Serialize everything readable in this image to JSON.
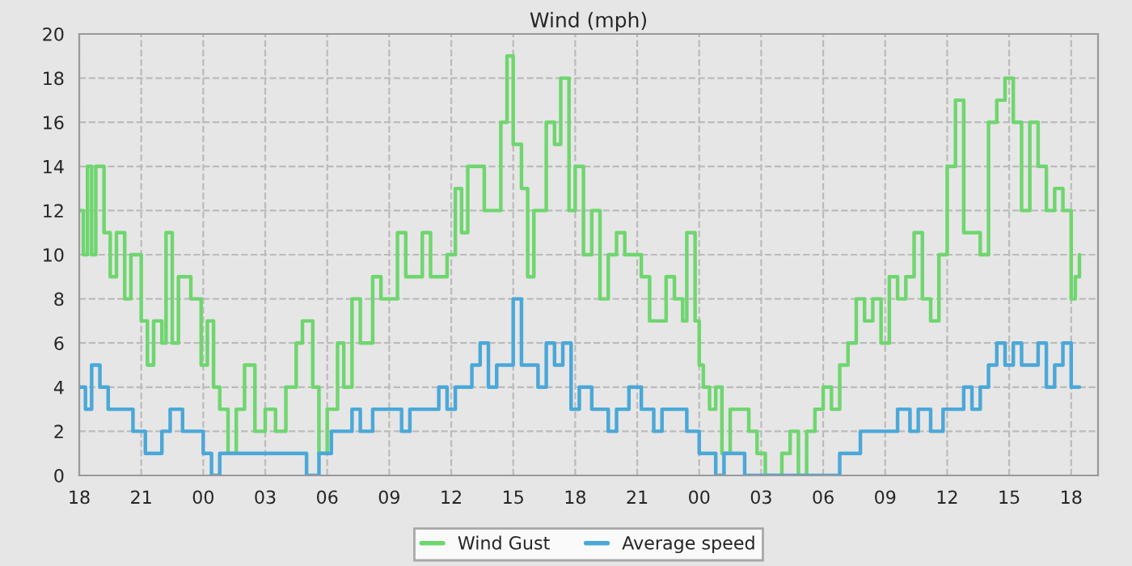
{
  "chart_data": {
    "type": "step",
    "title": "Wind (mph)",
    "xlim": [
      18,
      67.3
    ],
    "ylim": [
      0,
      20
    ],
    "xticks": [
      {
        "value": 18,
        "label": "18"
      },
      {
        "value": 21,
        "label": "21"
      },
      {
        "value": 24,
        "label": "00"
      },
      {
        "value": 27,
        "label": "03"
      },
      {
        "value": 30,
        "label": "06"
      },
      {
        "value": 33,
        "label": "09"
      },
      {
        "value": 36,
        "label": "12"
      },
      {
        "value": 39,
        "label": "15"
      },
      {
        "value": 42,
        "label": "18"
      },
      {
        "value": 45,
        "label": "21"
      },
      {
        "value": 48,
        "label": "00"
      },
      {
        "value": 51,
        "label": "03"
      },
      {
        "value": 54,
        "label": "06"
      },
      {
        "value": 57,
        "label": "09"
      },
      {
        "value": 60,
        "label": "12"
      },
      {
        "value": 63,
        "label": "15"
      },
      {
        "value": 66,
        "label": "18"
      }
    ],
    "yticks": [
      0,
      2,
      4,
      6,
      8,
      10,
      12,
      14,
      16,
      18,
      20
    ],
    "grid": true,
    "legend": "bottom",
    "series": [
      {
        "name": "Wind Gust",
        "color": "#6fd66f",
        "x": [
          18.0,
          18.2,
          18.4,
          18.6,
          18.8,
          19.2,
          19.5,
          19.8,
          20.2,
          20.5,
          21.0,
          21.3,
          21.6,
          22.0,
          22.2,
          22.5,
          22.8,
          23.4,
          23.9,
          24.2,
          24.5,
          24.8,
          25.2,
          25.6,
          26.0,
          26.5,
          27.0,
          27.5,
          28.0,
          28.5,
          28.8,
          29.3,
          29.6,
          30.0,
          30.5,
          30.8,
          31.2,
          31.6,
          32.2,
          32.6,
          33.0,
          33.4,
          33.8,
          34.2,
          34.6,
          35.0,
          35.3,
          35.8,
          36.2,
          36.5,
          36.8,
          37.3,
          37.6,
          38.0,
          38.4,
          38.7,
          39.0,
          39.4,
          39.7,
          40.0,
          40.3,
          40.6,
          41.0,
          41.3,
          41.7,
          42.0,
          42.4,
          42.8,
          43.2,
          43.6,
          44.0,
          44.4,
          44.8,
          45.2,
          45.6,
          46.0,
          46.4,
          46.8,
          47.2,
          47.4,
          47.8,
          48.0,
          48.2,
          48.5,
          48.8,
          49.1,
          49.5,
          49.8,
          50.4,
          50.8,
          51.2,
          51.6,
          52.0,
          52.4,
          52.8,
          53.2,
          53.6,
          54.0,
          54.4,
          54.8,
          55.2,
          55.6,
          56.0,
          56.4,
          56.8,
          57.2,
          57.6,
          58.0,
          58.4,
          58.8,
          59.2,
          59.6,
          60.0,
          60.4,
          60.8,
          61.2,
          61.6,
          62.0,
          62.4,
          62.8,
          63.2,
          63.6,
          64.0,
          64.4,
          64.8,
          65.2,
          65.6,
          66.0,
          66.2,
          66.4
        ],
        "values": [
          12,
          10,
          14,
          10,
          14,
          11,
          9,
          11,
          8,
          10,
          7,
          5,
          7,
          6,
          11,
          6,
          9,
          8,
          5,
          7,
          4,
          3,
          1,
          3,
          5,
          2,
          3,
          2,
          4,
          6,
          7,
          4,
          1,
          3,
          6,
          4,
          8,
          6,
          9,
          8,
          8,
          11,
          9,
          9,
          11,
          9,
          9,
          10,
          13,
          11,
          14,
          14,
          12,
          12,
          16,
          19,
          15,
          13,
          9,
          12,
          12,
          16,
          15,
          18,
          12,
          14,
          10,
          12,
          8,
          10,
          11,
          10,
          10,
          9,
          7,
          7,
          9,
          8,
          7,
          11,
          7,
          5,
          4,
          3,
          4,
          1,
          3,
          3,
          2,
          1,
          0,
          0,
          1,
          2,
          0,
          2,
          3,
          4,
          3,
          5,
          6,
          8,
          7,
          8,
          6,
          9,
          8,
          9,
          11,
          8,
          7,
          10,
          14,
          17,
          11,
          11,
          10,
          16,
          17,
          18,
          16,
          12,
          16,
          14,
          12,
          13,
          12,
          8,
          9,
          10
        ]
      },
      {
        "name": "Average speed",
        "color": "#4aa8d8",
        "x": [
          18.0,
          18.3,
          18.6,
          19.0,
          19.4,
          20.0,
          20.6,
          21.2,
          22.0,
          22.4,
          23.0,
          23.5,
          24.0,
          24.4,
          24.8,
          25.6,
          26.2,
          27.0,
          28.0,
          28.6,
          29.0,
          29.6,
          30.2,
          30.8,
          31.2,
          31.6,
          32.2,
          33.0,
          33.6,
          34.0,
          34.4,
          35.0,
          35.4,
          35.8,
          36.2,
          36.6,
          37.0,
          37.4,
          37.8,
          38.2,
          38.6,
          39.0,
          39.4,
          39.8,
          40.2,
          40.6,
          41.0,
          41.4,
          41.8,
          42.2,
          42.8,
          43.2,
          43.6,
          44.0,
          44.6,
          45.2,
          45.8,
          46.2,
          46.8,
          47.4,
          48.0,
          48.4,
          48.8,
          49.2,
          49.6,
          50.2,
          50.6,
          51.0,
          52.0,
          53.0,
          53.8,
          54.4,
          54.8,
          55.4,
          55.8,
          56.4,
          57.0,
          57.6,
          58.2,
          58.6,
          59.2,
          59.8,
          60.4,
          60.8,
          61.2,
          61.6,
          62.0,
          62.4,
          62.8,
          63.2,
          63.6,
          64.0,
          64.4,
          64.8,
          65.2,
          65.6,
          66.0,
          66.4
        ],
        "values": [
          4,
          3,
          5,
          4,
          3,
          3,
          2,
          1,
          2,
          3,
          2,
          2,
          1,
          0,
          1,
          1,
          1,
          1,
          1,
          1,
          0,
          1,
          2,
          2,
          3,
          2,
          3,
          3,
          2,
          3,
          3,
          3,
          4,
          3,
          4,
          4,
          5,
          6,
          4,
          5,
          5,
          8,
          5,
          5,
          4,
          6,
          5,
          6,
          3,
          4,
          3,
          3,
          2,
          3,
          4,
          3,
          2,
          3,
          3,
          2,
          1,
          1,
          0,
          1,
          1,
          0,
          0,
          0,
          0,
          0,
          0,
          0,
          1,
          1,
          2,
          2,
          2,
          3,
          2,
          3,
          2,
          3,
          3,
          4,
          3,
          4,
          5,
          6,
          5,
          6,
          5,
          5,
          6,
          4,
          5,
          6,
          4,
          4
        ]
      }
    ]
  }
}
